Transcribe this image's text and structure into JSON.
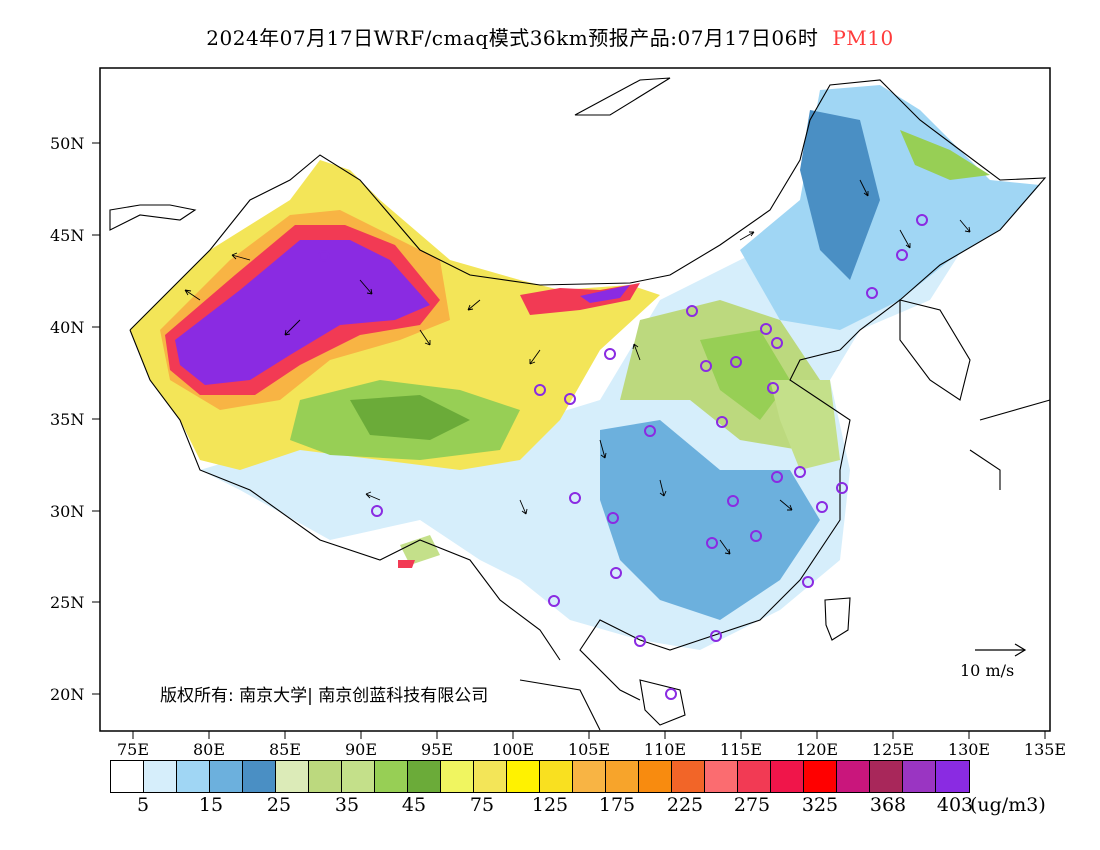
{
  "title": {
    "main": "2024年07月17日WRF/cmaq模式36km预报产品:07月17日06时",
    "species": "PM10",
    "species_color": "#ff3b3b"
  },
  "axes": {
    "lat_labels": [
      "50N",
      "45N",
      "40N",
      "35N",
      "30N",
      "25N",
      "20N"
    ],
    "lon_labels": [
      "75E",
      "80E",
      "85E",
      "90E",
      "95E",
      "100E",
      "105E",
      "110E",
      "115E",
      "120E",
      "125E",
      "130E",
      "135E"
    ]
  },
  "colorbar": {
    "colors": [
      "#ffffff",
      "#d6eefb",
      "#a0d6f4",
      "#6cb0dd",
      "#4a8fc4",
      "#dcebb8",
      "#bcd97e",
      "#c4e08a",
      "#97cf55",
      "#6bab39",
      "#f0f560",
      "#f3e558",
      "#fff200",
      "#f9e020",
      "#f8b444",
      "#f7a42b",
      "#f88b0f",
      "#f26528",
      "#fb6c70",
      "#f23a54",
      "#f0154a",
      "#ff0000",
      "#c9167c",
      "#a8275a",
      "#9a35c2",
      "#8a2be2"
    ],
    "labels": [
      "5",
      "15",
      "25",
      "35",
      "45",
      "75",
      "125",
      "175",
      "225",
      "275",
      "325",
      "368",
      "403"
    ],
    "unit": "(ug/m3)"
  },
  "copyright": "版权所有: 南京大学| 南京创蓝科技有限公司",
  "wind_reference": {
    "label": "10 m/s"
  },
  "cities_marker_color": "#8a2be2"
}
